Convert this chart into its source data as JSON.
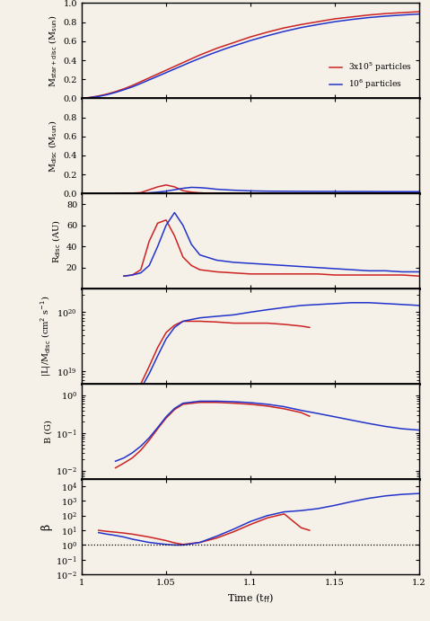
{
  "xlim": [
    1.0,
    1.2
  ],
  "xticks": [
    1.0,
    1.05,
    1.1,
    1.15,
    1.2
  ],
  "xlabel": "Time (t$_{\\rm ff}$)",
  "color_red": "#cc2222",
  "color_blue": "#2233cc",
  "bg_color": "#f5f0e8",
  "legend_labels": [
    "3x10$^5$ particles",
    "10$^6$ particles"
  ],
  "panel1_ylabel": "M$_{\\rm star+disc}$ (M$_{\\rm sun}$)",
  "panel1_ylim": [
    0.0,
    1.0
  ],
  "panel1_yticks": [
    0.0,
    0.2,
    0.4,
    0.6,
    0.8,
    1.0
  ],
  "panel1_red_x": [
    1.0,
    1.005,
    1.01,
    1.015,
    1.02,
    1.025,
    1.03,
    1.035,
    1.04,
    1.045,
    1.05,
    1.055,
    1.06,
    1.065,
    1.07,
    1.075,
    1.08,
    1.085,
    1.09,
    1.095,
    1.1,
    1.11,
    1.12,
    1.13,
    1.14,
    1.15,
    1.16,
    1.17,
    1.18,
    1.19,
    1.2
  ],
  "panel1_red_y": [
    0.0,
    0.01,
    0.025,
    0.045,
    0.07,
    0.1,
    0.135,
    0.175,
    0.215,
    0.255,
    0.295,
    0.335,
    0.375,
    0.415,
    0.455,
    0.49,
    0.525,
    0.555,
    0.585,
    0.615,
    0.645,
    0.695,
    0.74,
    0.775,
    0.805,
    0.835,
    0.855,
    0.875,
    0.89,
    0.9,
    0.91
  ],
  "panel1_blue_x": [
    1.0,
    1.005,
    1.01,
    1.015,
    1.02,
    1.025,
    1.03,
    1.035,
    1.04,
    1.045,
    1.05,
    1.055,
    1.06,
    1.065,
    1.07,
    1.075,
    1.08,
    1.085,
    1.09,
    1.095,
    1.1,
    1.11,
    1.12,
    1.13,
    1.14,
    1.15,
    1.16,
    1.17,
    1.18,
    1.19,
    1.2
  ],
  "panel1_blue_y": [
    0.0,
    0.008,
    0.02,
    0.038,
    0.062,
    0.09,
    0.12,
    0.156,
    0.194,
    0.232,
    0.27,
    0.308,
    0.346,
    0.384,
    0.42,
    0.455,
    0.488,
    0.52,
    0.55,
    0.578,
    0.607,
    0.657,
    0.703,
    0.743,
    0.775,
    0.805,
    0.828,
    0.848,
    0.863,
    0.875,
    0.885
  ],
  "panel2_ylabel": "M$_{\\rm disc}$ (M$_{\\rm sun}$)",
  "panel2_ylim": [
    0.0,
    1.0
  ],
  "panel2_yticks": [
    0.0,
    0.2,
    0.4,
    0.6,
    0.8
  ],
  "panel2_red_x": [
    1.02,
    1.025,
    1.03,
    1.035,
    1.04,
    1.045,
    1.05,
    1.055,
    1.06,
    1.065,
    1.07,
    1.075,
    1.08,
    1.09,
    1.1,
    1.11,
    1.12,
    1.13,
    1.14,
    1.15,
    1.16,
    1.17,
    1.18,
    1.19,
    1.2
  ],
  "panel2_red_y": [
    0.002,
    0.003,
    0.005,
    0.01,
    0.04,
    0.07,
    0.09,
    0.07,
    0.03,
    0.015,
    0.008,
    0.004,
    0.003,
    0.002,
    0.003,
    0.003,
    0.004,
    0.004,
    0.004,
    0.004,
    0.004,
    0.004,
    0.004,
    0.004,
    0.004
  ],
  "panel2_blue_x": [
    1.025,
    1.03,
    1.035,
    1.04,
    1.045,
    1.05,
    1.055,
    1.06,
    1.065,
    1.07,
    1.075,
    1.08,
    1.09,
    1.1,
    1.11,
    1.12,
    1.13,
    1.14,
    1.15,
    1.16,
    1.17,
    1.18,
    1.19,
    1.2
  ],
  "panel2_blue_y": [
    0.001,
    0.002,
    0.004,
    0.008,
    0.015,
    0.025,
    0.04,
    0.055,
    0.065,
    0.062,
    0.055,
    0.045,
    0.035,
    0.028,
    0.025,
    0.024,
    0.023,
    0.022,
    0.022,
    0.021,
    0.021,
    0.02,
    0.02,
    0.02
  ],
  "panel3_ylabel": "R$_{\\rm disc}$ (AU)",
  "panel3_ylim": [
    0,
    90
  ],
  "panel3_yticks": [
    20,
    40,
    60,
    80
  ],
  "panel3_red_x": [
    1.025,
    1.03,
    1.035,
    1.04,
    1.045,
    1.05,
    1.055,
    1.06,
    1.065,
    1.07,
    1.08,
    1.09,
    1.1,
    1.11,
    1.12,
    1.13,
    1.14,
    1.15,
    1.16,
    1.17,
    1.18,
    1.19,
    1.2
  ],
  "panel3_red_y": [
    12,
    13,
    18,
    45,
    62,
    65,
    50,
    30,
    22,
    18,
    16,
    15,
    14,
    14,
    14,
    14,
    14,
    13,
    13,
    13,
    13,
    13,
    12
  ],
  "panel3_blue_x": [
    1.025,
    1.03,
    1.035,
    1.04,
    1.045,
    1.05,
    1.055,
    1.06,
    1.065,
    1.07,
    1.08,
    1.09,
    1.1,
    1.11,
    1.12,
    1.13,
    1.14,
    1.15,
    1.16,
    1.17,
    1.18,
    1.19,
    1.2
  ],
  "panel3_blue_y": [
    12,
    13,
    15,
    22,
    40,
    60,
    72,
    60,
    42,
    32,
    27,
    25,
    24,
    23,
    22,
    21,
    20,
    19,
    18,
    17,
    17,
    16,
    16
  ],
  "panel4_ylabel": "|L|/M$_{\\rm disc}$ (cm$^2$ s$^{-1}$)",
  "panel4_ylim": [
    6e+18,
    2.5e+20
  ],
  "panel4_red_x": [
    1.035,
    1.04,
    1.045,
    1.05,
    1.055,
    1.06,
    1.065,
    1.07,
    1.08,
    1.09,
    1.1,
    1.11,
    1.12,
    1.13,
    1.135
  ],
  "panel4_red_y": [
    6e+18,
    1.2e+19,
    2.5e+19,
    4.5e+19,
    6e+19,
    7e+19,
    7e+19,
    7e+19,
    6.8e+19,
    6.5e+19,
    6.5e+19,
    6.5e+19,
    6.2e+19,
    5.8e+19,
    5.5e+19
  ],
  "panel4_blue_x": [
    1.035,
    1.04,
    1.045,
    1.05,
    1.055,
    1.06,
    1.065,
    1.07,
    1.08,
    1.09,
    1.1,
    1.11,
    1.12,
    1.13,
    1.14,
    1.15,
    1.16,
    1.17,
    1.18,
    1.19,
    1.2
  ],
  "panel4_blue_y": [
    5e+18,
    9e+18,
    1.8e+19,
    3.5e+19,
    5.5e+19,
    7e+19,
    7.5e+19,
    8e+19,
    8.5e+19,
    9e+19,
    1e+20,
    1.1e+20,
    1.2e+20,
    1.3e+20,
    1.35e+20,
    1.4e+20,
    1.45e+20,
    1.45e+20,
    1.4e+20,
    1.35e+20,
    1.3e+20
  ],
  "panel5_ylabel": "B (G)",
  "panel5_ylim": [
    0.006,
    2.0
  ],
  "panel5_red_x": [
    1.02,
    1.025,
    1.03,
    1.035,
    1.04,
    1.045,
    1.05,
    1.055,
    1.06,
    1.07,
    1.08,
    1.09,
    1.1,
    1.11,
    1.12,
    1.13,
    1.135
  ],
  "panel5_red_y": [
    0.012,
    0.016,
    0.022,
    0.035,
    0.065,
    0.13,
    0.25,
    0.42,
    0.58,
    0.65,
    0.65,
    0.62,
    0.58,
    0.52,
    0.44,
    0.35,
    0.28
  ],
  "panel5_blue_x": [
    1.02,
    1.025,
    1.03,
    1.035,
    1.04,
    1.045,
    1.05,
    1.055,
    1.06,
    1.07,
    1.08,
    1.09,
    1.1,
    1.11,
    1.12,
    1.13,
    1.14,
    1.15,
    1.16,
    1.17,
    1.18,
    1.19,
    1.2
  ],
  "panel5_blue_y": [
    0.018,
    0.022,
    0.03,
    0.045,
    0.075,
    0.14,
    0.27,
    0.45,
    0.62,
    0.7,
    0.7,
    0.68,
    0.64,
    0.58,
    0.5,
    0.4,
    0.33,
    0.27,
    0.22,
    0.18,
    0.15,
    0.13,
    0.12
  ],
  "panel6_ylabel": "β",
  "panel6_ylim": [
    0.01,
    30000.0
  ],
  "panel6_yticks": [
    0.01,
    0.1,
    1.0,
    10.0,
    100.0,
    1000.0,
    10000.0
  ],
  "panel6_red_x": [
    1.01,
    1.015,
    1.02,
    1.025,
    1.03,
    1.04,
    1.05,
    1.055,
    1.06,
    1.07,
    1.08,
    1.09,
    1.1,
    1.11,
    1.12,
    1.13,
    1.135
  ],
  "panel6_red_y": [
    10.0,
    8.5,
    7.5,
    6.5,
    5.5,
    3.5,
    2.0,
    1.4,
    1.1,
    1.5,
    3.0,
    8.0,
    25.0,
    70.0,
    130.0,
    15.0,
    10.0
  ],
  "panel6_blue_x": [
    1.01,
    1.015,
    1.02,
    1.025,
    1.03,
    1.04,
    1.05,
    1.055,
    1.06,
    1.07,
    1.08,
    1.09,
    1.1,
    1.11,
    1.12,
    1.13,
    1.14,
    1.15,
    1.16,
    1.17,
    1.18,
    1.19,
    1.2
  ],
  "panel6_blue_y": [
    7.0,
    5.5,
    4.5,
    3.5,
    2.5,
    1.5,
    1.1,
    1.0,
    1.0,
    1.5,
    4.0,
    12.0,
    40.0,
    100.0,
    180.0,
    220.0,
    300.0,
    500.0,
    900.0,
    1500.0,
    2200.0,
    2800.0,
    3200.0
  ],
  "panel6_hline": 1.0
}
